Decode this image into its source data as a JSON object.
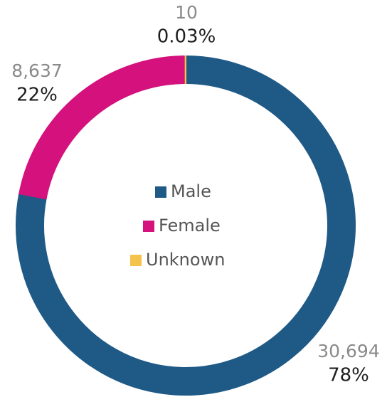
{
  "chart_data": {
    "type": "donut",
    "categories": [
      "Male",
      "Female",
      "Unknown"
    ],
    "values": [
      30694,
      8637,
      10
    ],
    "value_labels": [
      "30,694",
      "8,637",
      "10"
    ],
    "percent_labels": [
      "78%",
      "22%",
      "0.03%"
    ],
    "colors": [
      "#1f5a87",
      "#d4117c",
      "#f4c34d"
    ],
    "legend": "center"
  }
}
